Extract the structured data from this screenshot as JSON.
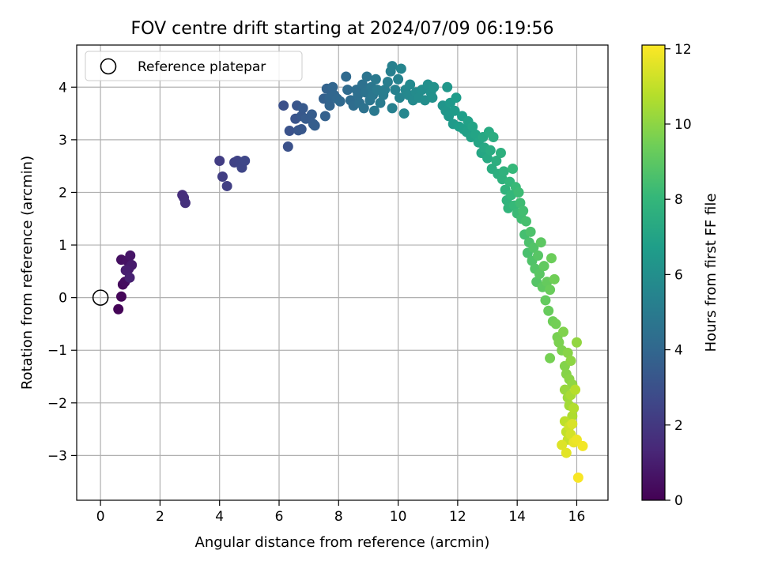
{
  "chart_data": {
    "type": "scatter",
    "title": "FOV centre drift starting at 2024/07/09 06:19:56",
    "xlabel": "Angular distance from reference (arcmin)",
    "ylabel": "Rotation from reference (arcmin)",
    "xlim": [
      -0.8,
      17.05
    ],
    "ylim": [
      -3.85,
      4.8
    ],
    "xticks": [
      0,
      2,
      4,
      6,
      8,
      10,
      12,
      14,
      16
    ],
    "yticks": [
      -3,
      -2,
      -1,
      0,
      1,
      2,
      3,
      4
    ],
    "grid": true,
    "legend": {
      "position": "top-left",
      "entries": [
        "Reference platepar"
      ]
    },
    "reference_point": {
      "x": 0,
      "y": 0,
      "marker": "open-circle"
    },
    "colorbar": {
      "label": "Hours from first FF file",
      "range": [
        0,
        12.1
      ],
      "ticks": [
        0,
        2,
        4,
        6,
        8,
        10,
        12
      ],
      "colormap": "viridis"
    },
    "colors": [
      "#440154",
      "#482878",
      "#3e4989",
      "#31688e",
      "#26828e",
      "#1f9e89",
      "#35b779",
      "#6ece58",
      "#b5de2b",
      "#fde725"
    ],
    "points": [
      {
        "x": 0.6,
        "y": -0.22,
        "h": 0.1
      },
      {
        "x": 0.7,
        "y": 0.02,
        "h": 0.2
      },
      {
        "x": 0.75,
        "y": 0.25,
        "h": 0.3
      },
      {
        "x": 0.82,
        "y": 0.3,
        "h": 0.4
      },
      {
        "x": 0.7,
        "y": 0.72,
        "h": 0.5
      },
      {
        "x": 0.9,
        "y": 0.7,
        "h": 0.6
      },
      {
        "x": 1.0,
        "y": 0.8,
        "h": 0.7
      },
      {
        "x": 0.95,
        "y": 0.55,
        "h": 0.8
      },
      {
        "x": 1.05,
        "y": 0.62,
        "h": 0.9
      },
      {
        "x": 0.85,
        "y": 0.52,
        "h": 1.0
      },
      {
        "x": 0.98,
        "y": 0.38,
        "h": 1.1
      },
      {
        "x": 2.75,
        "y": 1.95,
        "h": 1.6
      },
      {
        "x": 2.8,
        "y": 1.9,
        "h": 1.65
      },
      {
        "x": 2.85,
        "y": 1.8,
        "h": 1.7
      },
      {
        "x": 4.0,
        "y": 2.6,
        "h": 2.2
      },
      {
        "x": 4.1,
        "y": 2.3,
        "h": 2.25
      },
      {
        "x": 4.25,
        "y": 2.12,
        "h": 2.3
      },
      {
        "x": 4.5,
        "y": 2.57,
        "h": 2.4
      },
      {
        "x": 4.6,
        "y": 2.6,
        "h": 2.45
      },
      {
        "x": 4.7,
        "y": 2.55,
        "h": 2.5
      },
      {
        "x": 4.75,
        "y": 2.47,
        "h": 2.55
      },
      {
        "x": 4.85,
        "y": 2.6,
        "h": 2.6
      },
      {
        "x": 6.15,
        "y": 3.65,
        "h": 3.0
      },
      {
        "x": 6.3,
        "y": 2.87,
        "h": 3.05
      },
      {
        "x": 6.35,
        "y": 3.17,
        "h": 3.1
      },
      {
        "x": 6.55,
        "y": 3.4,
        "h": 3.15
      },
      {
        "x": 6.6,
        "y": 3.65,
        "h": 3.2
      },
      {
        "x": 6.65,
        "y": 3.18,
        "h": 3.25
      },
      {
        "x": 6.75,
        "y": 3.2,
        "h": 3.3
      },
      {
        "x": 6.75,
        "y": 3.45,
        "h": 3.35
      },
      {
        "x": 6.8,
        "y": 3.6,
        "h": 3.4
      },
      {
        "x": 6.9,
        "y": 3.4,
        "h": 3.45
      },
      {
        "x": 7.1,
        "y": 3.48,
        "h": 3.5
      },
      {
        "x": 7.15,
        "y": 3.3,
        "h": 3.55
      },
      {
        "x": 7.2,
        "y": 3.27,
        "h": 3.6
      },
      {
        "x": 7.5,
        "y": 3.78,
        "h": 3.7
      },
      {
        "x": 7.55,
        "y": 3.45,
        "h": 3.75
      },
      {
        "x": 7.6,
        "y": 3.97,
        "h": 3.8
      },
      {
        "x": 7.7,
        "y": 3.65,
        "h": 3.85
      },
      {
        "x": 7.7,
        "y": 3.8,
        "h": 3.9
      },
      {
        "x": 7.8,
        "y": 4.0,
        "h": 3.95
      },
      {
        "x": 7.85,
        "y": 3.85,
        "h": 4.0
      },
      {
        "x": 7.95,
        "y": 3.78,
        "h": 4.05
      },
      {
        "x": 8.05,
        "y": 3.73,
        "h": 4.1
      },
      {
        "x": 8.25,
        "y": 4.2,
        "h": 4.15
      },
      {
        "x": 8.3,
        "y": 3.95,
        "h": 4.2
      },
      {
        "x": 8.4,
        "y": 3.75,
        "h": 4.25
      },
      {
        "x": 8.5,
        "y": 3.65,
        "h": 4.3
      },
      {
        "x": 8.6,
        "y": 3.95,
        "h": 4.35
      },
      {
        "x": 8.65,
        "y": 3.85,
        "h": 4.4
      },
      {
        "x": 8.7,
        "y": 3.7,
        "h": 4.45
      },
      {
        "x": 8.8,
        "y": 4.05,
        "h": 4.5
      },
      {
        "x": 8.85,
        "y": 3.6,
        "h": 4.55
      },
      {
        "x": 8.9,
        "y": 3.9,
        "h": 4.6
      },
      {
        "x": 8.95,
        "y": 4.2,
        "h": 4.65
      },
      {
        "x": 9.05,
        "y": 3.75,
        "h": 4.7
      },
      {
        "x": 9.1,
        "y": 4.0,
        "h": 4.75
      },
      {
        "x": 9.15,
        "y": 3.85,
        "h": 4.8
      },
      {
        "x": 9.2,
        "y": 3.55,
        "h": 4.85
      },
      {
        "x": 9.25,
        "y": 4.15,
        "h": 4.9
      },
      {
        "x": 9.3,
        "y": 3.95,
        "h": 4.95
      },
      {
        "x": 9.4,
        "y": 3.7,
        "h": 5.0
      },
      {
        "x": 9.5,
        "y": 3.85,
        "h": 5.05
      },
      {
        "x": 9.55,
        "y": 3.95,
        "h": 5.1
      },
      {
        "x": 9.65,
        "y": 4.1,
        "h": 5.15
      },
      {
        "x": 9.75,
        "y": 4.3,
        "h": 5.2
      },
      {
        "x": 9.8,
        "y": 4.4,
        "h": 5.25
      },
      {
        "x": 9.8,
        "y": 3.6,
        "h": 5.3
      },
      {
        "x": 9.9,
        "y": 3.95,
        "h": 5.35
      },
      {
        "x": 10.0,
        "y": 4.15,
        "h": 5.4
      },
      {
        "x": 10.05,
        "y": 3.8,
        "h": 5.45
      },
      {
        "x": 10.1,
        "y": 4.35,
        "h": 5.5
      },
      {
        "x": 10.2,
        "y": 3.5,
        "h": 5.55
      },
      {
        "x": 10.25,
        "y": 3.95,
        "h": 5.6
      },
      {
        "x": 10.35,
        "y": 3.85,
        "h": 5.65
      },
      {
        "x": 10.4,
        "y": 4.05,
        "h": 5.7
      },
      {
        "x": 10.5,
        "y": 3.75,
        "h": 5.75
      },
      {
        "x": 10.6,
        "y": 3.9,
        "h": 5.8
      },
      {
        "x": 10.7,
        "y": 3.8,
        "h": 5.85
      },
      {
        "x": 10.8,
        "y": 3.95,
        "h": 5.9
      },
      {
        "x": 10.9,
        "y": 3.75,
        "h": 5.95
      },
      {
        "x": 11.0,
        "y": 4.05,
        "h": 6.0
      },
      {
        "x": 11.1,
        "y": 3.9,
        "h": 6.05
      },
      {
        "x": 11.15,
        "y": 3.8,
        "h": 6.1
      },
      {
        "x": 11.2,
        "y": 4.0,
        "h": 6.15
      },
      {
        "x": 11.5,
        "y": 3.65,
        "h": 6.3
      },
      {
        "x": 11.6,
        "y": 3.55,
        "h": 6.35
      },
      {
        "x": 11.65,
        "y": 4.0,
        "h": 6.4
      },
      {
        "x": 11.7,
        "y": 3.45,
        "h": 6.45
      },
      {
        "x": 11.75,
        "y": 3.7,
        "h": 6.5
      },
      {
        "x": 11.85,
        "y": 3.3,
        "h": 6.55
      },
      {
        "x": 11.9,
        "y": 3.55,
        "h": 6.6
      },
      {
        "x": 11.95,
        "y": 3.8,
        "h": 6.65
      },
      {
        "x": 12.05,
        "y": 3.25,
        "h": 6.7
      },
      {
        "x": 12.15,
        "y": 3.45,
        "h": 6.75
      },
      {
        "x": 12.2,
        "y": 3.2,
        "h": 6.8
      },
      {
        "x": 12.3,
        "y": 3.15,
        "h": 6.85
      },
      {
        "x": 12.35,
        "y": 3.35,
        "h": 6.9
      },
      {
        "x": 12.45,
        "y": 3.05,
        "h": 6.95
      },
      {
        "x": 12.5,
        "y": 3.25,
        "h": 7.0
      },
      {
        "x": 12.6,
        "y": 3.1,
        "h": 7.05
      },
      {
        "x": 12.7,
        "y": 2.95,
        "h": 7.1
      },
      {
        "x": 12.8,
        "y": 2.75,
        "h": 7.15
      },
      {
        "x": 12.85,
        "y": 3.05,
        "h": 7.2
      },
      {
        "x": 12.9,
        "y": 2.85,
        "h": 7.25
      },
      {
        "x": 13.0,
        "y": 2.65,
        "h": 7.3
      },
      {
        "x": 13.05,
        "y": 3.15,
        "h": 7.35
      },
      {
        "x": 13.1,
        "y": 2.8,
        "h": 7.4
      },
      {
        "x": 13.15,
        "y": 2.45,
        "h": 7.45
      },
      {
        "x": 13.2,
        "y": 3.05,
        "h": 7.5
      },
      {
        "x": 13.3,
        "y": 2.6,
        "h": 7.55
      },
      {
        "x": 13.35,
        "y": 2.35,
        "h": 7.6
      },
      {
        "x": 13.45,
        "y": 2.75,
        "h": 7.65
      },
      {
        "x": 13.5,
        "y": 2.25,
        "h": 7.7
      },
      {
        "x": 13.55,
        "y": 2.4,
        "h": 7.75
      },
      {
        "x": 13.6,
        "y": 2.05,
        "h": 7.8
      },
      {
        "x": 13.65,
        "y": 1.85,
        "h": 7.85
      },
      {
        "x": 13.7,
        "y": 1.7,
        "h": 7.9
      },
      {
        "x": 13.75,
        "y": 2.2,
        "h": 7.95
      },
      {
        "x": 13.8,
        "y": 1.95,
        "h": 8.0
      },
      {
        "x": 13.85,
        "y": 2.45,
        "h": 8.05
      },
      {
        "x": 13.9,
        "y": 1.75,
        "h": 8.1
      },
      {
        "x": 13.95,
        "y": 2.1,
        "h": 8.15
      },
      {
        "x": 14.0,
        "y": 1.6,
        "h": 8.2
      },
      {
        "x": 14.05,
        "y": 2.0,
        "h": 8.25
      },
      {
        "x": 14.1,
        "y": 1.8,
        "h": 8.3
      },
      {
        "x": 14.15,
        "y": 1.5,
        "h": 8.35
      },
      {
        "x": 14.2,
        "y": 1.65,
        "h": 8.4
      },
      {
        "x": 14.25,
        "y": 1.2,
        "h": 8.45
      },
      {
        "x": 14.3,
        "y": 1.45,
        "h": 8.5
      },
      {
        "x": 14.35,
        "y": 0.85,
        "h": 8.55
      },
      {
        "x": 14.4,
        "y": 1.05,
        "h": 8.6
      },
      {
        "x": 14.45,
        "y": 1.25,
        "h": 8.65
      },
      {
        "x": 14.5,
        "y": 0.7,
        "h": 8.7
      },
      {
        "x": 14.55,
        "y": 0.95,
        "h": 8.75
      },
      {
        "x": 14.6,
        "y": 0.55,
        "h": 8.8
      },
      {
        "x": 14.65,
        "y": 0.3,
        "h": 8.85
      },
      {
        "x": 14.7,
        "y": 0.8,
        "h": 8.9
      },
      {
        "x": 14.75,
        "y": 0.45,
        "h": 8.95
      },
      {
        "x": 14.8,
        "y": 1.05,
        "h": 9.0
      },
      {
        "x": 14.85,
        "y": 0.2,
        "h": 9.05
      },
      {
        "x": 14.9,
        "y": 0.6,
        "h": 9.1
      },
      {
        "x": 14.95,
        "y": -0.05,
        "h": 9.15
      },
      {
        "x": 15.0,
        "y": 0.3,
        "h": 9.2
      },
      {
        "x": 15.05,
        "y": -0.25,
        "h": 9.25
      },
      {
        "x": 15.1,
        "y": 0.15,
        "h": 9.3
      },
      {
        "x": 15.15,
        "y": 0.75,
        "h": 9.35
      },
      {
        "x": 15.2,
        "y": -0.45,
        "h": 9.4
      },
      {
        "x": 15.25,
        "y": 0.35,
        "h": 9.45
      },
      {
        "x": 15.3,
        "y": -0.5,
        "h": 9.5
      },
      {
        "x": 15.1,
        "y": -1.15,
        "h": 9.55
      },
      {
        "x": 15.35,
        "y": -0.75,
        "h": 9.6
      },
      {
        "x": 15.4,
        "y": -0.85,
        "h": 9.65
      },
      {
        "x": 15.5,
        "y": -1.0,
        "h": 9.7
      },
      {
        "x": 15.55,
        "y": -0.65,
        "h": 9.75
      },
      {
        "x": 15.6,
        "y": -1.3,
        "h": 9.8
      },
      {
        "x": 15.65,
        "y": -1.45,
        "h": 9.85
      },
      {
        "x": 15.7,
        "y": -1.05,
        "h": 9.9
      },
      {
        "x": 15.75,
        "y": -1.55,
        "h": 9.95
      },
      {
        "x": 15.8,
        "y": -1.2,
        "h": 10.0
      },
      {
        "x": 15.85,
        "y": -1.65,
        "h": 10.05
      },
      {
        "x": 16.0,
        "y": -0.85,
        "h": 10.1
      },
      {
        "x": 15.6,
        "y": -1.75,
        "h": 10.2
      },
      {
        "x": 15.7,
        "y": -1.9,
        "h": 10.3
      },
      {
        "x": 15.75,
        "y": -2.05,
        "h": 10.4
      },
      {
        "x": 15.8,
        "y": -1.85,
        "h": 10.5
      },
      {
        "x": 15.85,
        "y": -2.25,
        "h": 10.6
      },
      {
        "x": 15.9,
        "y": -2.1,
        "h": 10.7
      },
      {
        "x": 15.95,
        "y": -1.75,
        "h": 10.8
      },
      {
        "x": 15.6,
        "y": -2.35,
        "h": 10.9
      },
      {
        "x": 15.65,
        "y": -2.55,
        "h": 11.0
      },
      {
        "x": 15.7,
        "y": -2.7,
        "h": 11.1
      },
      {
        "x": 15.75,
        "y": -2.45,
        "h": 11.2
      },
      {
        "x": 15.8,
        "y": -2.6,
        "h": 11.3
      },
      {
        "x": 15.85,
        "y": -2.4,
        "h": 11.4
      },
      {
        "x": 15.5,
        "y": -2.8,
        "h": 11.5
      },
      {
        "x": 15.65,
        "y": -2.95,
        "h": 11.6
      },
      {
        "x": 15.9,
        "y": -2.75,
        "h": 11.7
      },
      {
        "x": 16.0,
        "y": -2.7,
        "h": 11.8
      },
      {
        "x": 16.2,
        "y": -2.82,
        "h": 11.9
      },
      {
        "x": 16.05,
        "y": -3.42,
        "h": 12.0
      }
    ]
  }
}
